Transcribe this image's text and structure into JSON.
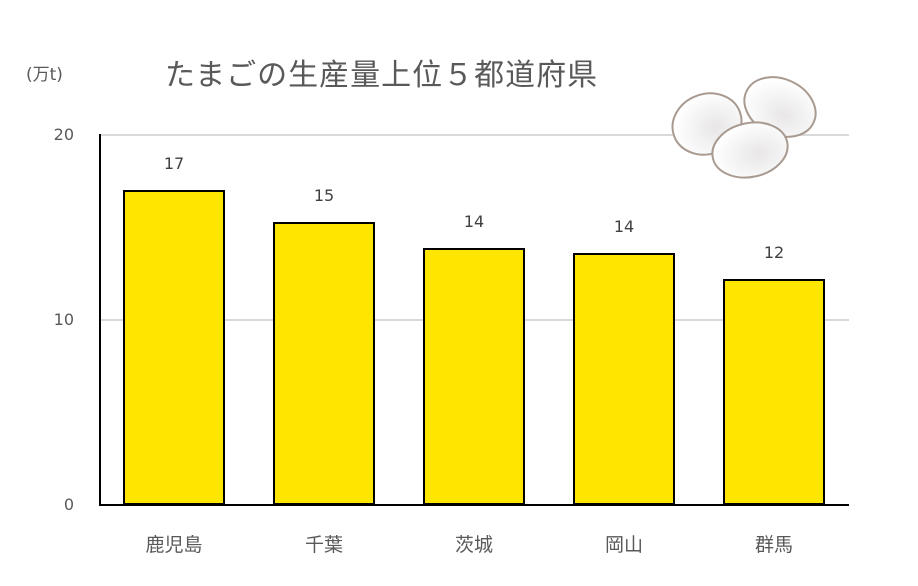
{
  "chart_data": {
    "type": "bar",
    "title": "たまごの生産量上位５都道府県",
    "xlabel": "",
    "ylabel": "(万t)",
    "categories": [
      "鹿児島",
      "千葉",
      "茨城",
      "岡山",
      "群馬"
    ],
    "values": [
      17,
      15,
      14,
      14,
      12
    ],
    "bar_heights_estimated": [
      17.0,
      15.3,
      13.9,
      13.6,
      12.2
    ],
    "data_labels": [
      "17",
      "15",
      "14",
      "14",
      "12"
    ],
    "ylim": [
      0,
      20
    ],
    "yticks": [
      "0",
      "10",
      "20"
    ],
    "grid": true,
    "legend": null,
    "bar_color": "#ffe600",
    "bar_edge_color": "#000000",
    "decoration": "eggs-illustration"
  },
  "header": {
    "unit_label": "(万t)",
    "title": "たまごの生産量上位５都道府県"
  }
}
